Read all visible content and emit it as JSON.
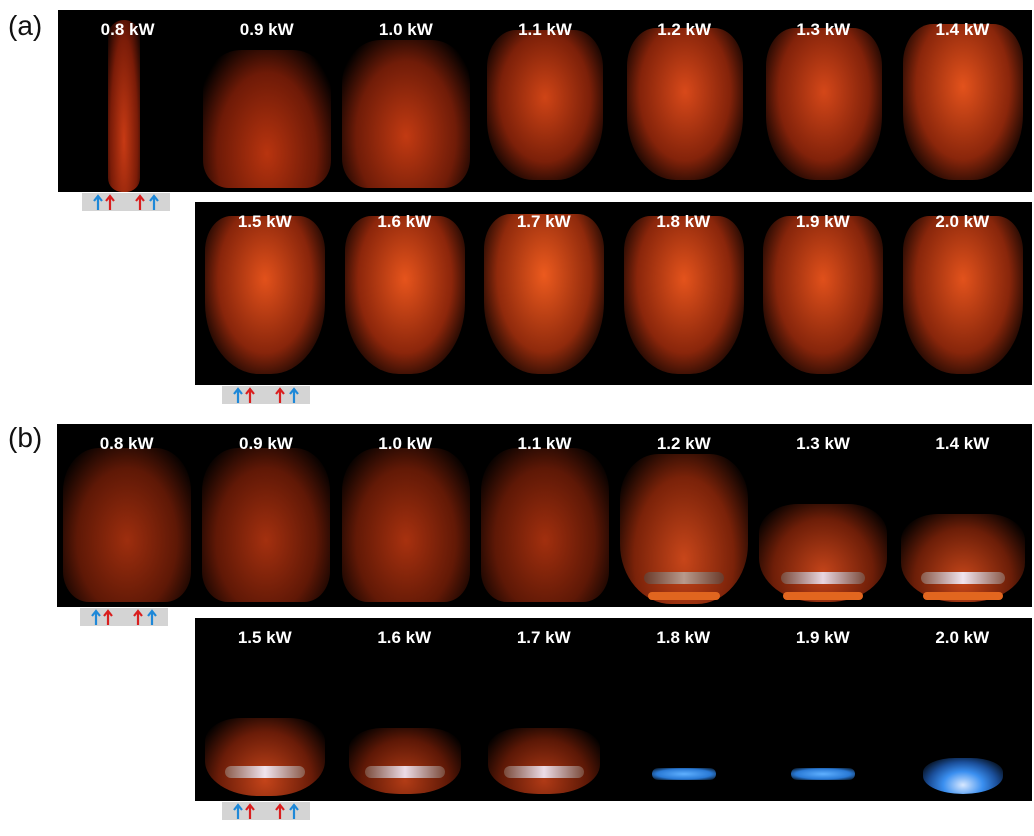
{
  "panels": [
    {
      "label": "(a)",
      "rows": [
        [
          "0.8 kW",
          "0.9 kW",
          "1.0 kW",
          "1.1 kW",
          "1.2 kW",
          "1.3 kW",
          "1.4 kW"
        ],
        [
          "1.5 kW",
          "1.6 kW",
          "1.7 kW",
          "1.8 kW",
          "1.9 kW",
          "2.0 kW"
        ]
      ]
    },
    {
      "label": "(b)",
      "rows": [
        [
          "0.8 kW",
          "0.9 kW",
          "1.0 kW",
          "1.1 kW",
          "1.2 kW",
          "1.3 kW",
          "1.4 kW"
        ],
        [
          "1.5 kW",
          "1.6 kW",
          "1.7 kW",
          "1.8 kW",
          "1.9 kW",
          "2.0 kW"
        ]
      ]
    }
  ],
  "colors": {
    "flame_orange": "#e8491a",
    "flame_blue": "#3a8ff0",
    "arrow_blue": "#1e88d8",
    "arrow_red": "#d91e1e",
    "inlet_gray": "#d4d4d4"
  }
}
